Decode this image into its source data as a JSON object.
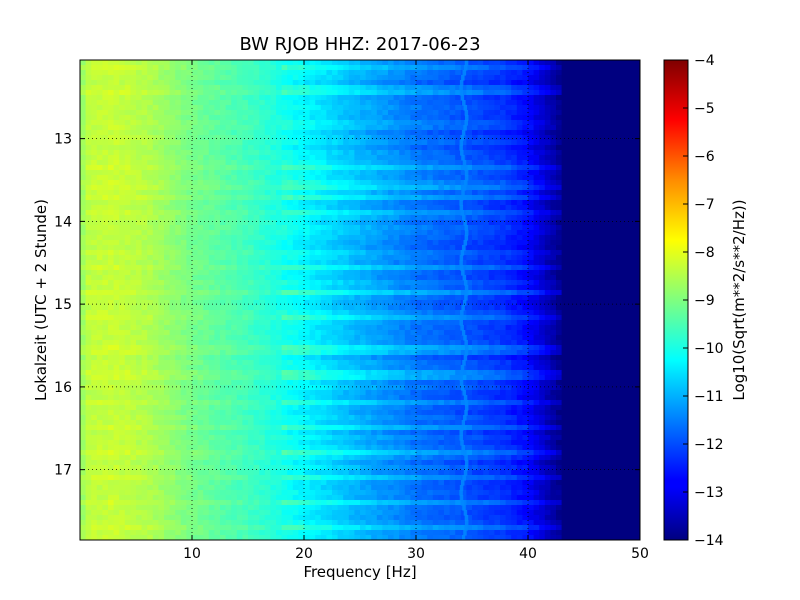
{
  "chart_data": {
    "type": "heatmap",
    "title": "BW RJOB HHZ: 2017-06-23",
    "xlabel": "Frequency [Hz]",
    "ylabel": "Lokalzeit (UTC + 2 Stunde)",
    "xlim": [
      0,
      50
    ],
    "ylim": [
      12.05,
      17.85
    ],
    "y_inverted": true,
    "x_ticks": [
      10,
      20,
      30,
      40,
      50
    ],
    "y_ticks": [
      13,
      14,
      15,
      16,
      17
    ],
    "grid": true,
    "colormap": "jet",
    "colorbar": {
      "label": "Log10(Sqrt(m**2/s**2/Hz))",
      "range": [
        -14,
        -4
      ],
      "ticks": [
        -4,
        -5,
        -6,
        -7,
        -8,
        -9,
        -10,
        -11,
        -12,
        -13,
        -14
      ]
    },
    "spectrum_profile": [
      {
        "hz": 0.0,
        "value": -9.0
      },
      {
        "hz": 0.5,
        "value": -8.4
      },
      {
        "hz": 3.0,
        "value": -8.3
      },
      {
        "hz": 6.0,
        "value": -8.5
      },
      {
        "hz": 10.0,
        "value": -9.1
      },
      {
        "hz": 15.0,
        "value": -9.6
      },
      {
        "hz": 20.0,
        "value": -10.3
      },
      {
        "hz": 25.0,
        "value": -11.0
      },
      {
        "hz": 30.0,
        "value": -11.6
      },
      {
        "hz": 35.0,
        "value": -12.0
      },
      {
        "hz": 38.0,
        "value": -12.3
      },
      {
        "hz": 40.0,
        "value": -12.7
      },
      {
        "hz": 41.5,
        "value": -13.3
      },
      {
        "hz": 43.0,
        "value": -13.9
      },
      {
        "hz": 50.0,
        "value": -14.0
      }
    ],
    "spectral_line": {
      "hz": 34.3,
      "value": -11.4
    },
    "bright_rows_hours": [
      12.15,
      12.4,
      13.35,
      13.55,
      13.72,
      13.9,
      14.55,
      14.85,
      15.15,
      15.55,
      15.85,
      16.2,
      16.5,
      16.78,
      17.1,
      17.4,
      17.7
    ]
  }
}
